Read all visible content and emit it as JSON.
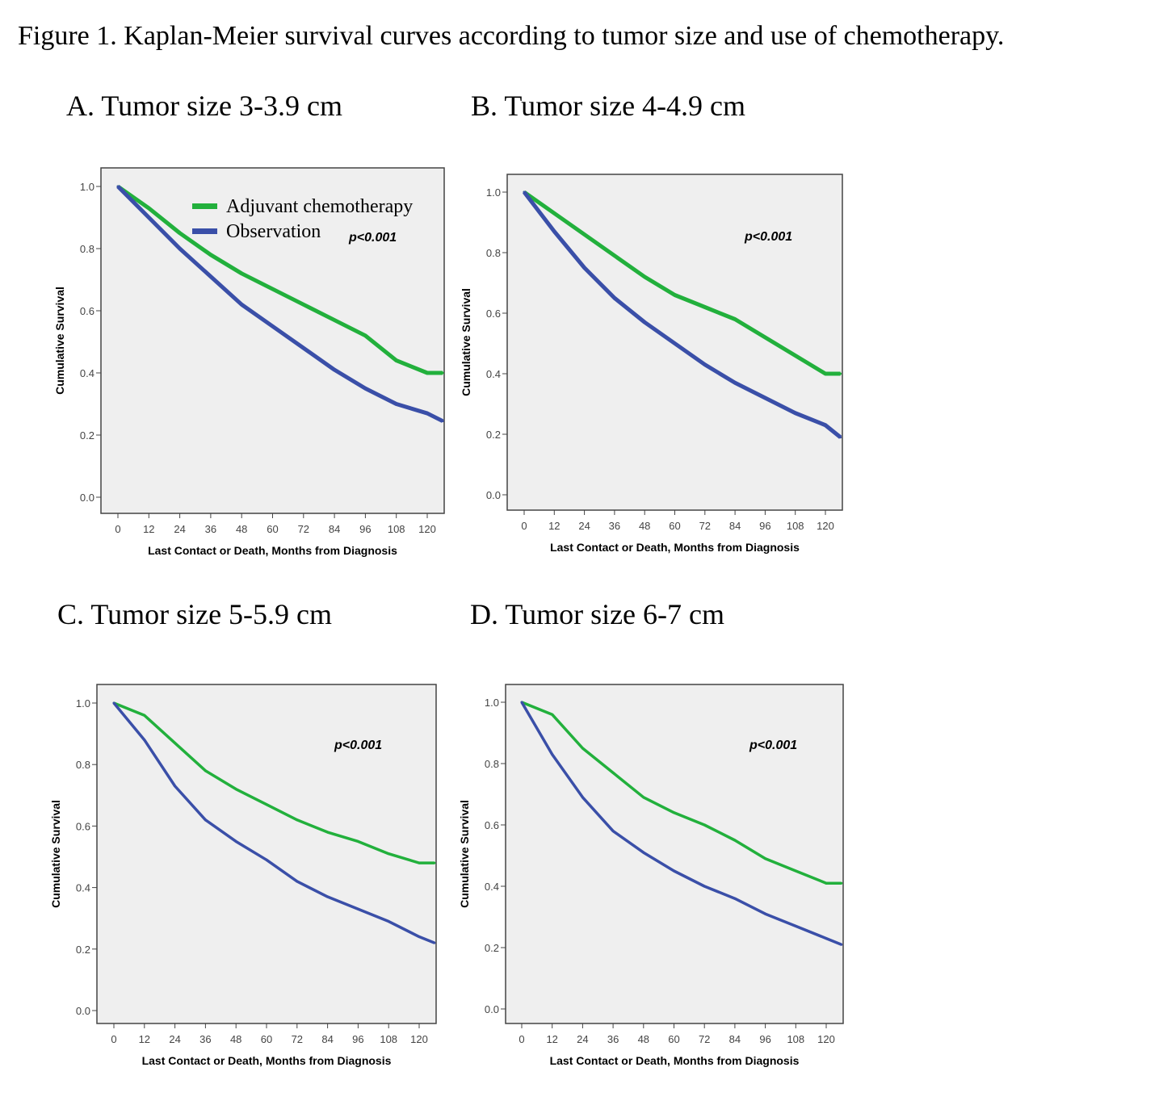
{
  "figure_title": "Figure 1. Kaplan-Meier survival curves according to tumor size and use of chemotherapy.",
  "colors": {
    "chemo": "#22b03c",
    "observation": "#3a4fa8",
    "plot_bg": "#efefef"
  },
  "chart_data": [
    {
      "type": "line",
      "title": "A. Tumor size 3-3.9 cm",
      "xlabel": "Last Contact or Death, Months from Diagnosis",
      "ylabel": "Cumulative Survival",
      "annotation": "p<0.001",
      "legend": {
        "position": "top-right",
        "entries": [
          "Adjuvant chemotherapy",
          "Observation"
        ]
      },
      "xlim": [
        0,
        126
      ],
      "ylim": [
        0,
        1.0
      ],
      "xticks": [
        "0",
        "12",
        "24",
        "36",
        "48",
        "60",
        "72",
        "84",
        "96",
        "108",
        "120"
      ],
      "yticks": [
        "0.0",
        "0.2",
        "0.4",
        "0.6",
        "0.8",
        "1.0"
      ],
      "x": [
        0,
        12,
        24,
        36,
        48,
        60,
        72,
        84,
        96,
        108,
        120,
        126
      ],
      "series": [
        {
          "name": "Adjuvant chemotherapy",
          "values": [
            1.0,
            0.93,
            0.85,
            0.78,
            0.72,
            0.67,
            0.62,
            0.57,
            0.52,
            0.44,
            0.4,
            0.4
          ]
        },
        {
          "name": "Observation",
          "values": [
            1.0,
            0.9,
            0.8,
            0.71,
            0.62,
            0.55,
            0.48,
            0.41,
            0.35,
            0.3,
            0.27,
            0.245
          ]
        }
      ]
    },
    {
      "type": "line",
      "title": "B. Tumor size 4-4.9 cm",
      "xlabel": "Last Contact or Death, Months from Diagnosis",
      "ylabel": "Cumulative Survival",
      "annotation": "p<0.001",
      "xlim": [
        0,
        126
      ],
      "ylim": [
        0,
        1.0
      ],
      "xticks": [
        "0",
        "12",
        "24",
        "36",
        "48",
        "60",
        "72",
        "84",
        "96",
        "108",
        "120"
      ],
      "yticks": [
        "0.0",
        "0.2",
        "0.4",
        "0.6",
        "0.8",
        "1.0"
      ],
      "x": [
        0,
        12,
        24,
        36,
        48,
        60,
        72,
        84,
        96,
        108,
        120,
        126
      ],
      "series": [
        {
          "name": "Adjuvant chemotherapy",
          "values": [
            1.0,
            0.93,
            0.86,
            0.79,
            0.72,
            0.66,
            0.62,
            0.58,
            0.52,
            0.46,
            0.4,
            0.4
          ]
        },
        {
          "name": "Observation",
          "values": [
            1.0,
            0.87,
            0.75,
            0.65,
            0.57,
            0.5,
            0.43,
            0.37,
            0.32,
            0.27,
            0.23,
            0.19
          ]
        }
      ]
    },
    {
      "type": "line",
      "title": "C. Tumor size 5-5.9 cm",
      "xlabel": "Last Contact or Death, Months from Diagnosis",
      "ylabel": "Cumulative Survival",
      "annotation": "p<0.001",
      "xlim": [
        0,
        126
      ],
      "ylim": [
        0,
        1.0
      ],
      "xticks": [
        "0",
        "12",
        "24",
        "36",
        "48",
        "60",
        "72",
        "84",
        "96",
        "108",
        "120"
      ],
      "yticks": [
        "0.0",
        "0.2",
        "0.4",
        "0.6",
        "0.8",
        "1.0"
      ],
      "x": [
        0,
        12,
        24,
        36,
        48,
        60,
        72,
        84,
        96,
        108,
        120,
        126
      ],
      "series": [
        {
          "name": "Adjuvant chemotherapy",
          "values": [
            1.0,
            0.96,
            0.87,
            0.78,
            0.72,
            0.67,
            0.62,
            0.58,
            0.55,
            0.51,
            0.48,
            0.48
          ]
        },
        {
          "name": "Observation",
          "values": [
            1.0,
            0.88,
            0.73,
            0.62,
            0.55,
            0.49,
            0.42,
            0.37,
            0.33,
            0.29,
            0.24,
            0.22
          ]
        }
      ]
    },
    {
      "type": "line",
      "title": "D. Tumor size 6-7 cm",
      "xlabel": "Last Contact or Death, Months from Diagnosis",
      "ylabel": "Cumulative Survival",
      "annotation": "p<0.001",
      "xlim": [
        0,
        126
      ],
      "ylim": [
        0,
        1.0
      ],
      "xticks": [
        "0",
        "12",
        "24",
        "36",
        "48",
        "60",
        "72",
        "84",
        "96",
        "108",
        "120"
      ],
      "yticks": [
        "0.0",
        "0.2",
        "0.4",
        "0.6",
        "0.8",
        "1.0"
      ],
      "x": [
        0,
        12,
        24,
        36,
        48,
        60,
        72,
        84,
        96,
        108,
        120,
        126
      ],
      "series": [
        {
          "name": "Adjuvant chemotherapy",
          "values": [
            1.0,
            0.96,
            0.85,
            0.77,
            0.69,
            0.64,
            0.6,
            0.55,
            0.49,
            0.45,
            0.41,
            0.41
          ]
        },
        {
          "name": "Observation",
          "values": [
            1.0,
            0.83,
            0.69,
            0.58,
            0.51,
            0.45,
            0.4,
            0.36,
            0.31,
            0.27,
            0.23,
            0.21
          ]
        }
      ]
    }
  ]
}
